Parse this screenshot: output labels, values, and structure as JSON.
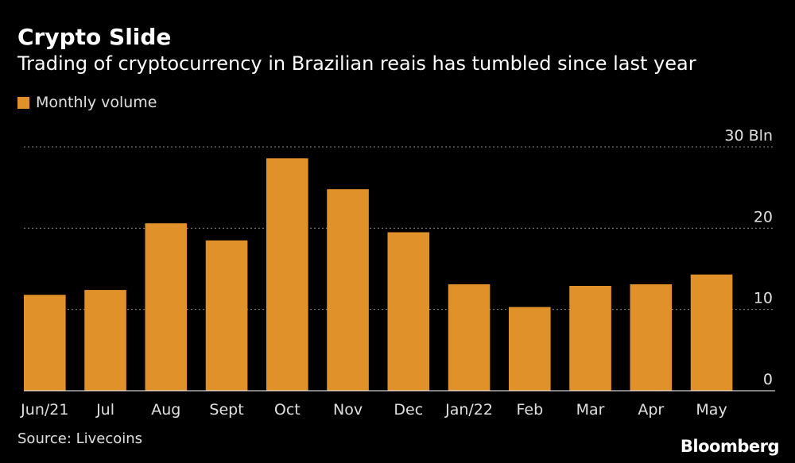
{
  "title": "Crypto Slide",
  "subtitle": "Trading of cryptocurrency in Brazilian reais has tumbled since last year",
  "source": "Source: Livecoins",
  "brand": "Bloomberg",
  "colors": {
    "bar": "#E1912A",
    "background": "#000000",
    "grid": "#888888"
  },
  "chart_data": {
    "type": "bar",
    "categories": [
      "Jun/21",
      "Jul",
      "Aug",
      "Sept",
      "Oct",
      "Nov",
      "Dec",
      "Jan/22",
      "Feb",
      "Mar",
      "Apr",
      "May"
    ],
    "series": [
      {
        "name": "Monthly volume",
        "values": [
          11.8,
          12.4,
          20.6,
          18.5,
          28.6,
          24.8,
          19.5,
          13.1,
          10.3,
          12.9,
          13.1,
          14.3
        ]
      }
    ],
    "ytick_labels": [
      "0",
      "10",
      "20",
      "30 Bln"
    ],
    "ytick_values": [
      0,
      10,
      20,
      30
    ],
    "ylim": [
      0,
      30
    ],
    "grid": true,
    "legend": "top-left",
    "y_axis_side": "right"
  }
}
